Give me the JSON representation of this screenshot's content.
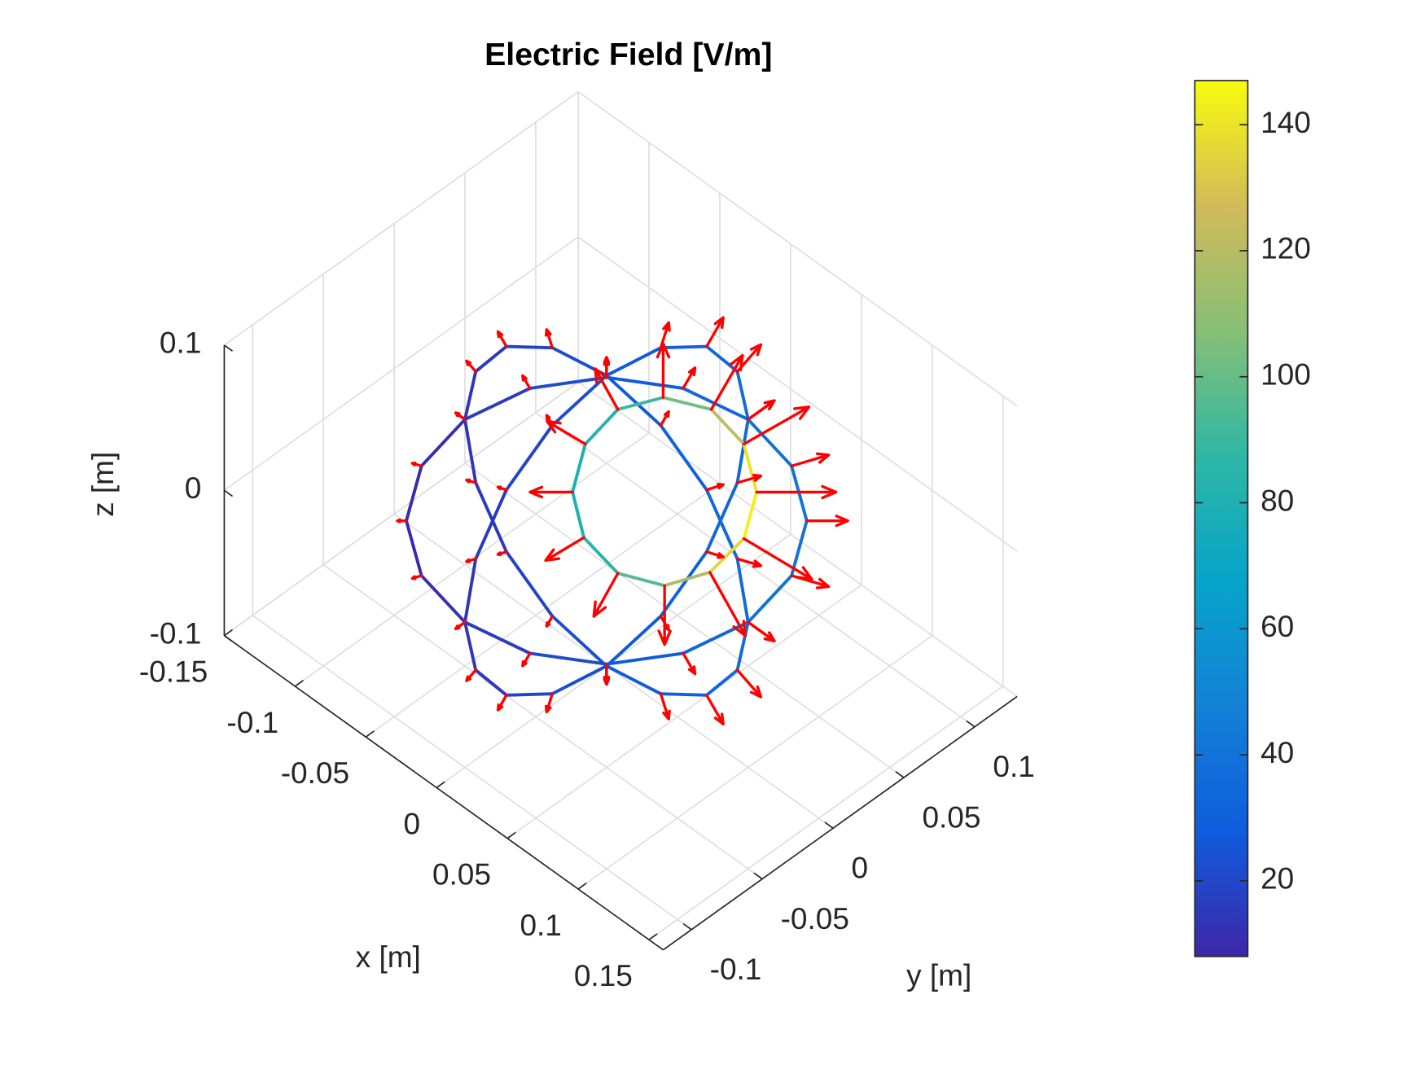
{
  "chart_data": {
    "type": "quiver3",
    "title": "Electric Field [V/m]",
    "xlabel": "x [m]",
    "ylabel": "y [m]",
    "zlabel": "z [m]",
    "xlim": [
      -0.15,
      0.16
    ],
    "ylim": [
      -0.12,
      0.13
    ],
    "zlim": [
      -0.1,
      0.1
    ],
    "xticks": [
      -0.15,
      -0.1,
      -0.05,
      0,
      0.05,
      0.1,
      0.15
    ],
    "yticks": [
      -0.1,
      -0.05,
      0,
      0.05,
      0.1
    ],
    "zticks": [
      -0.1,
      0,
      0.1
    ],
    "grid": true,
    "colormap": "parula",
    "arrow_color": "#ff0000",
    "colorbar": {
      "clim": [
        8,
        147
      ],
      "ticks": [
        20,
        40,
        60,
        80,
        100,
        120,
        140
      ]
    },
    "loops": [
      {
        "x": [
          0.1,
          0.0924,
          0.0707,
          0.0383,
          0,
          -0.0383,
          -0.0707,
          -0.0924,
          -0.1,
          -0.0924,
          -0.0707,
          -0.0383,
          0,
          0.0383,
          0.0707,
          0.0924
        ],
        "y": [
          0,
          0.0383,
          0.0707,
          0.0924,
          0.1,
          0.0924,
          0.0707,
          0.0383,
          0,
          -0.0383,
          -0.0707,
          -0.0924,
          -0.1,
          -0.0924,
          -0.0707,
          -0.0383
        ],
        "z": [
          0,
          0,
          0,
          0,
          0,
          0,
          0,
          0,
          0,
          0,
          0,
          0,
          0,
          0,
          0,
          0
        ],
        "values": [
          37,
          40,
          41,
          40,
          37,
          31,
          25,
          19,
          13,
          10,
          9,
          10,
          13,
          19,
          25,
          31
        ],
        "u": [
          0.0185,
          0.0185,
          0.0145,
          0.0077,
          0,
          -0.0059,
          -0.0088,
          -0.0088,
          -0.0065,
          -0.0046,
          -0.0032,
          -0.0019,
          0,
          0.0036,
          0.0088,
          0.0143
        ],
        "v": [
          0,
          0.0077,
          0.0145,
          0.0185,
          0.0185,
          0.0143,
          0.0088,
          0.0036,
          0,
          -0.0019,
          -0.0032,
          -0.0046,
          -0.0065,
          -0.0088,
          -0.0088,
          -0.0059
        ],
        "w": [
          0,
          0,
          0,
          0,
          0,
          0,
          0,
          0,
          0,
          0,
          0,
          0,
          0,
          0,
          0,
          0
        ]
      },
      {
        "x": [
          0.1,
          0.0924,
          0.0707,
          0.0383,
          0,
          -0.0383,
          -0.0707,
          -0.0924,
          -0.1,
          -0.0924,
          -0.0707,
          -0.0383,
          0,
          0.0383,
          0.0707,
          0.0924
        ],
        "y": [
          0,
          0,
          0,
          0,
          0,
          0,
          0,
          0,
          0,
          0,
          0,
          0,
          0,
          0,
          0,
          0
        ],
        "z": [
          0,
          0.0383,
          0.0707,
          0.0924,
          0.1,
          0.0924,
          0.0707,
          0.0383,
          0,
          -0.0383,
          -0.0707,
          -0.0924,
          -0.1,
          -0.0924,
          -0.0707,
          -0.0383
        ],
        "values": [
          37,
          36,
          33,
          29,
          25,
          21,
          17,
          14,
          13,
          14,
          17,
          21,
          25,
          29,
          33,
          36
        ],
        "u": [
          0.0185,
          0.0166,
          0.0117,
          0.0056,
          0,
          -0.004,
          -0.006,
          -0.0065,
          -0.0065,
          -0.0065,
          -0.006,
          -0.004,
          0,
          0.0056,
          0.0117,
          0.0166
        ],
        "v": [
          0,
          0,
          0,
          0,
          0,
          0,
          0,
          0,
          0,
          0,
          0,
          0,
          0,
          0,
          0,
          0
        ],
        "w": [
          0,
          0.0069,
          0.0117,
          0.0134,
          0.0125,
          0.0097,
          0.006,
          0.0027,
          0,
          -0.0027,
          -0.006,
          -0.0097,
          -0.0125,
          -0.0134,
          -0.0117,
          -0.0069
        ]
      },
      {
        "x": [
          0,
          0,
          0,
          0,
          0,
          0,
          0,
          0,
          0,
          0,
          0,
          0,
          0,
          0,
          0,
          0
        ],
        "y": [
          0.1,
          0.0924,
          0.0707,
          0.0383,
          0,
          -0.0383,
          -0.0707,
          -0.0924,
          -0.1,
          -0.0924,
          -0.0707,
          -0.0383,
          0,
          0.0383,
          0.0707,
          0.0924
        ],
        "z": [
          0,
          0.0383,
          0.0707,
          0.0924,
          0.1,
          0.0924,
          0.0707,
          0.0383,
          0,
          -0.0383,
          -0.0707,
          -0.0924,
          -0.1,
          -0.0924,
          -0.0707,
          -0.0383
        ],
        "values": [
          37,
          36,
          33,
          29,
          25,
          21,
          17,
          14,
          13,
          14,
          17,
          21,
          25,
          29,
          33,
          36
        ],
        "u": [
          0,
          0,
          0,
          0,
          0,
          0,
          0,
          0,
          0,
          0,
          0,
          0,
          0,
          0,
          0,
          0
        ],
        "v": [
          0.0185,
          0.0166,
          0.0117,
          0.0056,
          0,
          -0.004,
          -0.006,
          -0.0065,
          -0.0065,
          -0.0065,
          -0.006,
          -0.004,
          0,
          0.0056,
          0.0117,
          0.0166
        ],
        "w": [
          0,
          0.0069,
          0.0117,
          0.0134,
          0.0125,
          0.0097,
          0.006,
          0.0027,
          0,
          -0.0027,
          -0.006,
          -0.0097,
          -0.0125,
          -0.0134,
          -0.0117,
          -0.0069
        ]
      },
      {
        "x": [
          0.046,
          0.03,
          0.01,
          -0.01,
          -0.023,
          -0.026,
          -0.019,
          -0.004,
          0.017,
          0.036,
          0.049,
          0.053
        ],
        "y": [
          0.06,
          0.067,
          0.064,
          0.05,
          0.031,
          0.011,
          -0.005,
          -0.012,
          -0.009,
          0.005,
          0.024,
          0.044
        ],
        "z": [
          0.01,
          0.027,
          0.039,
          0.043,
          0.039,
          0.027,
          0.01,
          -0.006,
          -0.018,
          -0.023,
          -0.018,
          -0.006
        ],
        "values": [
          145,
          135,
          110,
          95,
          85,
          80,
          78,
          80,
          88,
          105,
          130,
          142
        ],
        "u": [
          0.028,
          0.014,
          -0.002,
          -0.013,
          -0.018,
          -0.019,
          -0.015,
          -0.008,
          0.002,
          0.014,
          0.028,
          0.034
        ],
        "v": [
          0.028,
          0.032,
          0.024,
          0.013,
          0.002,
          -0.008,
          -0.015,
          -0.019,
          -0.019,
          -0.014,
          -0.003,
          0.014
        ],
        "w": [
          0,
          0.013,
          0.019,
          0.019,
          0.014,
          0.008,
          0,
          -0.008,
          -0.015,
          -0.021,
          -0.022,
          -0.014
        ]
      }
    ]
  }
}
